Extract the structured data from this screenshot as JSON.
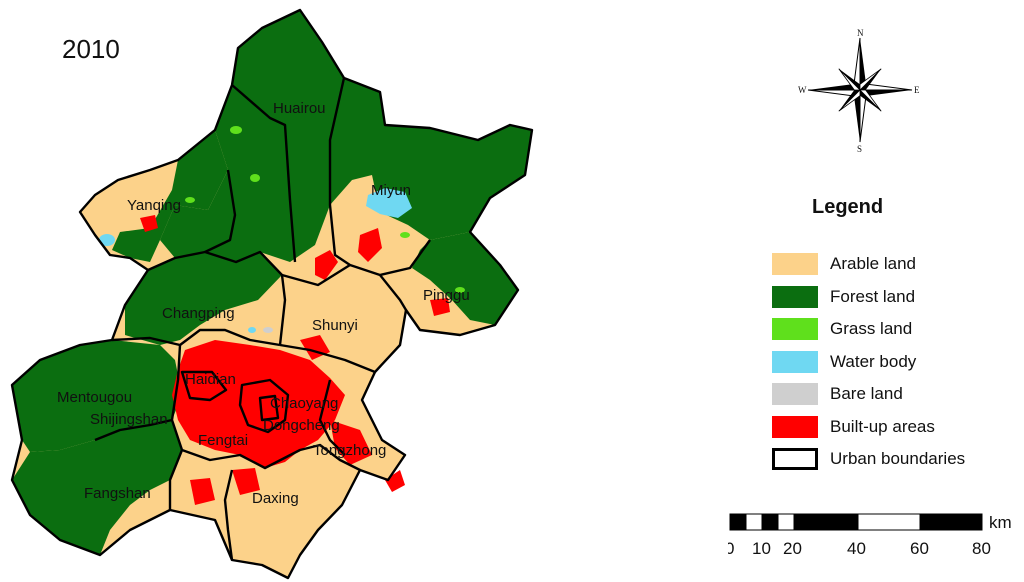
{
  "year": "2010",
  "districts": [
    "Huairou",
    "Miyun",
    "Yanqing",
    "Pinggu",
    "Changping",
    "Shunyi",
    "Haidian",
    "Mentougou",
    "Chaoyang",
    "Shijingshan",
    "Dongcheng",
    "Fengtai",
    "Tongzhong",
    "Fangshan",
    "Daxing"
  ],
  "compass": {
    "n": "N",
    "s": "S",
    "e": "E",
    "w": "W"
  },
  "legend": {
    "title": "Legend",
    "items": [
      {
        "label": "Arable land",
        "color": "#fcd28a"
      },
      {
        "label": "Forest land",
        "color": "#0b6e10"
      },
      {
        "label": "Grass land",
        "color": "#5fe01c"
      },
      {
        "label": "Water body",
        "color": "#6fd8f2"
      },
      {
        "label": "Bare land",
        "color": "#cfcfcf"
      },
      {
        "label": "Built-up areas",
        "color": "#ff0000"
      },
      {
        "label": "Urban boundaries",
        "color": "#000000"
      }
    ]
  },
  "scale": {
    "unit": "km",
    "ticks": [
      "0",
      "10",
      "20",
      "40",
      "60",
      "80"
    ]
  }
}
